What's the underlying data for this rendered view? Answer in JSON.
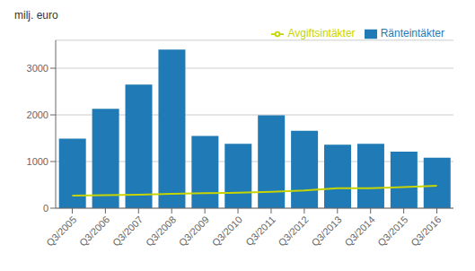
{
  "chart_data": {
    "type": "bar",
    "ylabel": "milj. euro",
    "categories": [
      "Q3/2005",
      "Q3/2006",
      "Q3/2007",
      "Q3/2008",
      "Q3/2009",
      "Q3/2010",
      "Q3/2011",
      "Q3/2012",
      "Q3/2013",
      "Q3/2014",
      "Q3/2015",
      "Q3/2016"
    ],
    "series": [
      {
        "name": "Ränteintäkter",
        "type": "bar",
        "color": "#1f7ab5",
        "values": [
          1490,
          2130,
          2650,
          3400,
          1550,
          1380,
          1990,
          1660,
          1360,
          1380,
          1210,
          1080
        ]
      },
      {
        "name": "Avgiftsintäkter",
        "type": "line",
        "color": "#c8d400",
        "values": [
          270,
          280,
          290,
          310,
          320,
          330,
          350,
          380,
          430,
          430,
          450,
          480
        ]
      }
    ],
    "ylim": [
      0,
      3600
    ],
    "yticks": [
      0,
      1000,
      2000,
      3000
    ],
    "grid": true,
    "legend": "upper right"
  }
}
